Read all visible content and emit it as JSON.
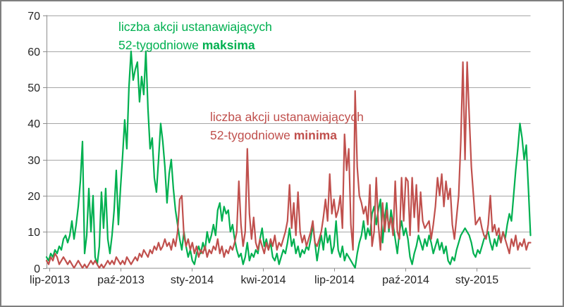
{
  "chart_data": {
    "type": "line",
    "title": "",
    "xlabel": "",
    "ylabel": "",
    "ylim": [
      0,
      70
    ],
    "yticks": [
      0,
      10,
      20,
      30,
      40,
      50,
      60,
      70
    ],
    "grid": true,
    "legend_position": "none",
    "x_ticks": {
      "labels": [
        "lip-2013",
        "paź-2013",
        "sty-2014",
        "kwi-2014",
        "lip-2014",
        "paź-2014",
        "sty-2015"
      ],
      "fractions": [
        0.006,
        0.153,
        0.3,
        0.447,
        0.594,
        0.741,
        0.888
      ]
    },
    "series": [
      {
        "id": "maxima",
        "name": "liczba akcji ustanawiających 52-tygodniowe maksima",
        "color": "#00B050",
        "values": [
          3,
          2,
          4,
          3,
          5,
          4,
          6,
          5,
          8,
          9,
          7,
          9,
          13,
          8,
          12,
          17,
          24,
          35,
          4,
          9,
          22,
          10,
          20,
          3,
          1,
          6,
          21,
          11,
          22,
          8,
          4,
          9,
          16,
          27,
          12,
          22,
          31,
          41,
          33,
          50,
          60,
          52,
          55,
          57,
          46,
          53,
          48,
          60,
          44,
          33,
          36,
          25,
          21,
          30,
          40,
          35,
          28,
          18,
          26,
          30,
          22,
          16,
          12,
          8,
          5,
          10,
          6,
          3,
          5,
          2,
          1,
          4,
          6,
          4,
          7,
          5,
          10,
          7,
          9,
          12,
          9,
          16,
          18,
          13,
          17,
          15,
          16,
          10,
          12,
          8,
          5,
          3,
          4,
          1,
          3,
          7,
          2,
          4,
          3,
          5,
          4,
          8,
          11,
          6,
          8,
          5,
          7,
          3,
          2,
          4,
          1,
          3,
          5,
          4,
          7,
          11,
          6,
          8,
          4,
          6,
          3,
          5,
          4,
          6,
          5,
          8,
          12,
          7,
          2,
          6,
          9,
          5,
          11,
          7,
          9,
          4,
          6,
          13,
          5,
          3,
          6,
          2,
          4,
          3,
          2,
          1,
          0,
          4,
          7,
          9,
          13,
          8,
          11,
          9,
          15,
          17,
          12,
          16,
          19,
          7,
          14,
          18,
          10,
          16,
          12,
          8,
          4,
          10,
          13,
          9,
          11,
          8,
          3,
          1,
          4,
          6,
          9,
          7,
          5,
          8,
          6,
          9,
          7,
          4,
          6,
          8,
          5,
          7,
          4,
          6,
          2,
          1,
          3,
          2,
          5,
          7,
          9,
          10,
          11,
          10,
          9,
          7,
          4,
          3,
          5,
          4,
          6,
          8,
          9,
          10,
          7,
          5,
          8,
          6,
          9,
          7,
          10,
          8,
          12,
          15,
          13,
          20,
          27,
          33,
          40,
          36,
          30,
          34,
          22,
          9
        ]
      },
      {
        "id": "minima",
        "name": "liczba akcji ustanawiających 52-tygodniowe minima",
        "color": "#C0504D",
        "values": [
          2,
          1,
          3,
          2,
          4,
          3,
          1,
          2,
          3,
          2,
          1,
          2,
          1,
          0,
          1,
          2,
          1,
          0,
          1,
          0,
          1,
          2,
          1,
          2,
          1,
          0,
          1,
          0,
          1,
          2,
          1,
          2,
          1,
          3,
          2,
          1,
          2,
          1,
          3,
          2,
          1,
          2,
          3,
          2,
          4,
          3,
          5,
          4,
          3,
          5,
          4,
          6,
          5,
          7,
          5,
          6,
          8,
          6,
          7,
          5,
          8,
          6,
          10,
          19,
          20,
          9,
          6,
          8,
          5,
          7,
          4,
          6,
          3,
          5,
          4,
          6,
          3,
          5,
          4,
          6,
          5,
          8,
          4,
          6,
          3,
          5,
          4,
          6,
          5,
          7,
          10,
          24,
          12,
          6,
          10,
          33,
          15,
          8,
          14,
          7,
          5,
          8,
          6,
          4,
          7,
          5,
          8,
          6,
          9,
          5,
          7,
          6,
          8,
          10,
          13,
          23,
          11,
          18,
          9,
          21,
          10,
          7,
          9,
          6,
          8,
          10,
          13,
          7,
          6,
          8,
          10,
          14,
          19,
          13,
          26,
          15,
          19,
          14,
          16,
          20,
          11,
          37,
          27,
          33,
          12,
          5,
          49,
          28,
          20,
          18,
          15,
          17,
          12,
          23,
          6,
          10,
          25,
          12,
          5,
          18,
          10,
          16,
          11,
          14,
          9,
          24,
          10,
          8,
          25,
          13,
          25,
          24,
          9,
          25,
          14,
          23,
          10,
          21,
          13,
          11,
          12,
          13,
          8,
          12,
          17,
          25,
          20,
          26,
          17,
          24,
          19,
          22,
          12,
          8,
          14,
          20,
          35,
          57,
          30,
          57,
          42,
          28,
          20,
          12,
          13,
          14,
          11,
          9,
          8,
          12,
          20,
          10,
          12,
          9,
          11,
          7,
          10,
          8,
          6,
          4,
          8,
          6,
          9,
          5,
          7,
          6,
          8,
          5,
          7,
          7
        ]
      }
    ],
    "annotations": {
      "maxima": {
        "line1": "liczba akcji ustanawiających",
        "line2_normal": "52-tygodniowe ",
        "line2_bold": "maksima",
        "color": "#00B050"
      },
      "minima": {
        "line1": "liczba akcji ustanawiających",
        "line2_normal": "52-tygodniowe ",
        "line2_bold": "minima",
        "color": "#C0504D"
      }
    },
    "colors": {
      "axis_text": "#262626",
      "gridline": "#A6A6A6",
      "axis_line": "#8C8C8C",
      "frame_border": "#7F7F7F",
      "background": "#FFFFFF"
    }
  }
}
